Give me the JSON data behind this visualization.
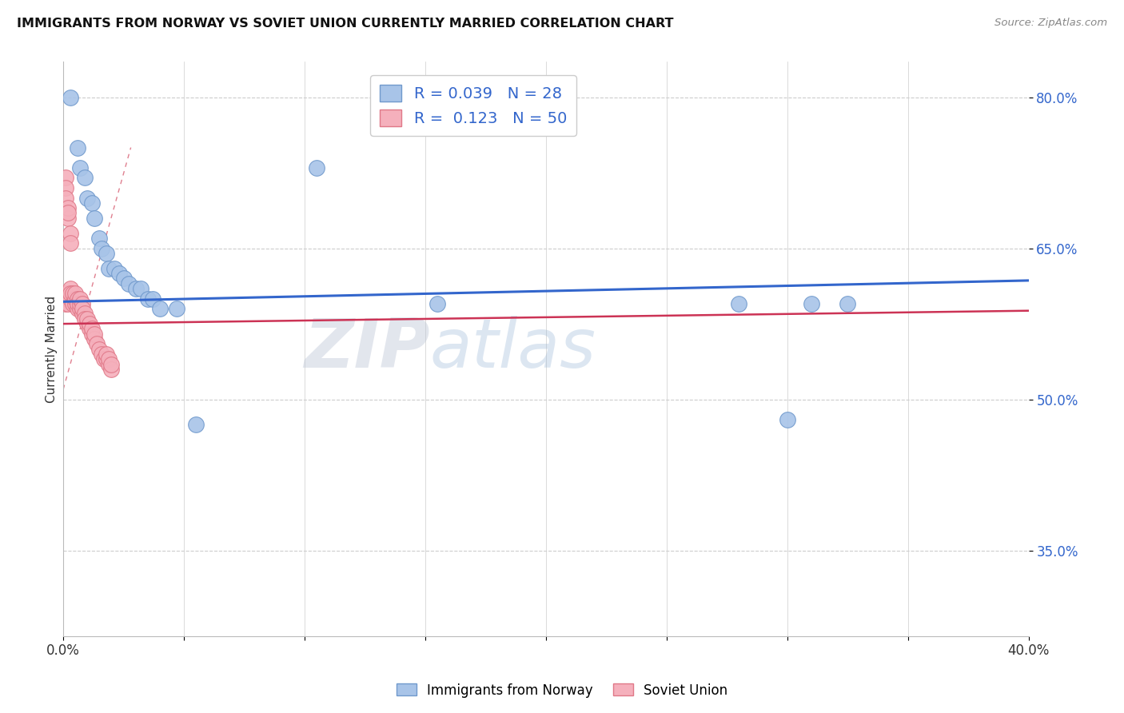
{
  "title": "IMMIGRANTS FROM NORWAY VS SOVIET UNION CURRENTLY MARRIED CORRELATION CHART",
  "source": "Source: ZipAtlas.com",
  "ylabel": "Currently Married",
  "xlim": [
    0.0,
    0.4
  ],
  "ylim": [
    0.265,
    0.835
  ],
  "xticks": [
    0.0,
    0.05,
    0.1,
    0.15,
    0.2,
    0.25,
    0.3,
    0.35,
    0.4
  ],
  "xtick_labels": [
    "0.0%",
    "",
    "",
    "",
    "",
    "",
    "",
    "",
    "40.0%"
  ],
  "ytick_positions": [
    0.35,
    0.5,
    0.65,
    0.8
  ],
  "ytick_labels": [
    "35.0%",
    "50.0%",
    "65.0%",
    "80.0%"
  ],
  "norway_R": 0.039,
  "norway_N": 28,
  "soviet_R": 0.123,
  "soviet_N": 50,
  "norway_color": "#a8c4e8",
  "soviet_color": "#f5b0bc",
  "norway_edge_color": "#7099cc",
  "soviet_edge_color": "#e07888",
  "trendline_norway_color": "#3366cc",
  "trendline_soviet_color": "#cc3355",
  "norway_x": [
    0.003,
    0.006,
    0.007,
    0.009,
    0.01,
    0.012,
    0.013,
    0.015,
    0.016,
    0.018,
    0.019,
    0.021,
    0.023,
    0.025,
    0.027,
    0.03,
    0.032,
    0.035,
    0.037,
    0.04,
    0.047,
    0.055,
    0.105,
    0.155,
    0.28,
    0.3,
    0.31,
    0.325
  ],
  "norway_y": [
    0.8,
    0.75,
    0.73,
    0.72,
    0.7,
    0.695,
    0.68,
    0.66,
    0.65,
    0.645,
    0.63,
    0.63,
    0.625,
    0.62,
    0.615,
    0.61,
    0.61,
    0.6,
    0.6,
    0.59,
    0.59,
    0.475,
    0.73,
    0.595,
    0.595,
    0.48,
    0.595,
    0.595
  ],
  "soviet_x": [
    0.001,
    0.001,
    0.001,
    0.002,
    0.002,
    0.003,
    0.003,
    0.003,
    0.004,
    0.004,
    0.005,
    0.005,
    0.005,
    0.006,
    0.006,
    0.006,
    0.007,
    0.007,
    0.007,
    0.008,
    0.008,
    0.008,
    0.009,
    0.009,
    0.01,
    0.01,
    0.011,
    0.011,
    0.012,
    0.012,
    0.013,
    0.013,
    0.014,
    0.015,
    0.016,
    0.017,
    0.018,
    0.018,
    0.019,
    0.019,
    0.02,
    0.02,
    0.001,
    0.001,
    0.001,
    0.002,
    0.002,
    0.002,
    0.003,
    0.003
  ],
  "soviet_y": [
    0.6,
    0.595,
    0.605,
    0.6,
    0.595,
    0.61,
    0.6,
    0.605,
    0.595,
    0.605,
    0.595,
    0.6,
    0.605,
    0.59,
    0.6,
    0.595,
    0.59,
    0.595,
    0.6,
    0.585,
    0.595,
    0.59,
    0.585,
    0.58,
    0.575,
    0.58,
    0.57,
    0.575,
    0.565,
    0.57,
    0.56,
    0.565,
    0.555,
    0.55,
    0.545,
    0.54,
    0.54,
    0.545,
    0.535,
    0.54,
    0.53,
    0.535,
    0.72,
    0.71,
    0.7,
    0.68,
    0.69,
    0.685,
    0.665,
    0.655
  ],
  "watermark_zip": "ZIP",
  "watermark_atlas": "atlas"
}
